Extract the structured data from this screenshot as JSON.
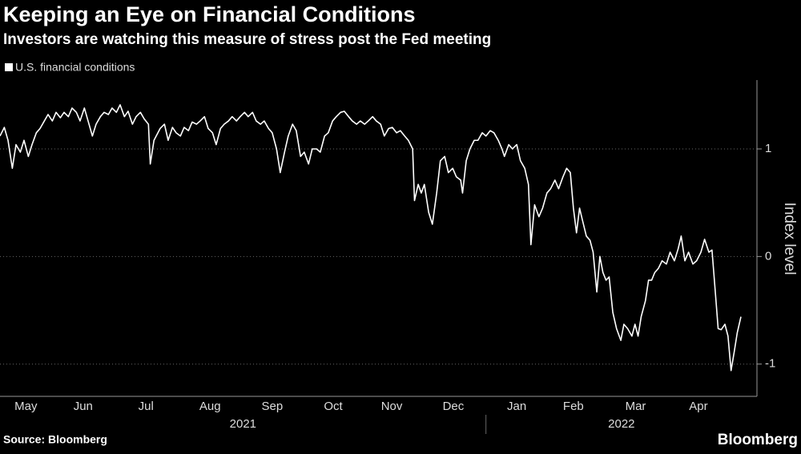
{
  "chart_data": {
    "type": "line",
    "title": "Keeping an Eye on Financial Conditions",
    "subtitle": "Investors are watching this measure of stress post the Fed meeting",
    "y_label": "Index level",
    "source": "Source: Bloomberg",
    "brand": "Bloomberg",
    "x": [
      0.08,
      0.15,
      0.21,
      0.28,
      0.34,
      0.41,
      0.47,
      0.54,
      0.6,
      0.67,
      0.73,
      0.8,
      0.86,
      0.93,
      0.99,
      1.06,
      1.12,
      1.19,
      1.25,
      1.32,
      1.38,
      1.45,
      1.51,
      1.58,
      1.64,
      1.71,
      1.77,
      1.84,
      1.9,
      1.97,
      2.03,
      2.1,
      2.16,
      2.23,
      2.29,
      2.36,
      2.42,
      2.49,
      2.52,
      2.58,
      2.68,
      2.75,
      2.81,
      2.88,
      2.94,
      3.01,
      3.07,
      3.14,
      3.2,
      3.27,
      3.33,
      3.4,
      3.46,
      3.53,
      3.59,
      3.66,
      3.72,
      3.79,
      3.85,
      3.92,
      3.98,
      4.05,
      4.11,
      4.18,
      4.24,
      4.31,
      4.37,
      4.44,
      4.5,
      4.57,
      4.63,
      4.7,
      4.76,
      4.83,
      4.89,
      4.96,
      5.02,
      5.09,
      5.15,
      5.22,
      5.28,
      5.35,
      5.41,
      5.48,
      5.54,
      5.61,
      5.67,
      5.74,
      5.8,
      5.87,
      5.93,
      6.0,
      6.06,
      6.13,
      6.19,
      6.26,
      6.32,
      6.39,
      6.45,
      6.52,
      6.58,
      6.65,
      6.71,
      6.78,
      6.81,
      6.87,
      6.92,
      6.97,
      7.04,
      7.1,
      7.17,
      7.23,
      7.3,
      7.36,
      7.43,
      7.49,
      7.56,
      7.59,
      7.65,
      7.71,
      7.78,
      7.84,
      7.91,
      7.97,
      8.04,
      8.1,
      8.17,
      8.23,
      8.27,
      8.34,
      8.4,
      8.47,
      8.53,
      8.6,
      8.66,
      8.7,
      8.76,
      8.83,
      8.89,
      8.96,
      9.02,
      9.09,
      9.15,
      9.22,
      9.28,
      9.34,
      9.39,
      9.44,
      9.49,
      9.54,
      9.6,
      9.66,
      9.71,
      9.77,
      9.82,
      9.87,
      9.92,
      9.97,
      10.03,
      10.09,
      10.16,
      10.21,
      10.27,
      10.34,
      10.39,
      10.44,
      10.49,
      10.56,
      10.61,
      10.66,
      10.71,
      10.77,
      10.83,
      10.9,
      10.96,
      11.03,
      11.09,
      11.14,
      11.2,
      11.26,
      11.33,
      11.39,
      11.46,
      11.52,
      11.59,
      11.64,
      11.69,
      11.74,
      11.79,
      11.85,
      11.9,
      11.95,
      12.0,
      12.05,
      12.11
    ],
    "series": [
      {
        "name": "U.S. financial conditions",
        "color": "#ffffff",
        "values": [
          1.12,
          1.2,
          1.08,
          0.82,
          1.04,
          0.97,
          1.08,
          0.93,
          1.04,
          1.15,
          1.19,
          1.26,
          1.32,
          1.26,
          1.34,
          1.29,
          1.34,
          1.3,
          1.38,
          1.34,
          1.26,
          1.38,
          1.26,
          1.12,
          1.23,
          1.3,
          1.34,
          1.32,
          1.38,
          1.34,
          1.41,
          1.3,
          1.35,
          1.23,
          1.3,
          1.34,
          1.28,
          1.23,
          0.86,
          1.08,
          1.19,
          1.23,
          1.08,
          1.2,
          1.15,
          1.12,
          1.2,
          1.17,
          1.25,
          1.23,
          1.26,
          1.3,
          1.19,
          1.15,
          1.04,
          1.19,
          1.23,
          1.26,
          1.3,
          1.26,
          1.3,
          1.34,
          1.3,
          1.34,
          1.26,
          1.23,
          1.26,
          1.19,
          1.15,
          1.0,
          0.78,
          0.97,
          1.12,
          1.23,
          1.17,
          0.93,
          0.97,
          0.86,
          1.0,
          1.0,
          0.97,
          1.12,
          1.15,
          1.26,
          1.3,
          1.34,
          1.35,
          1.3,
          1.26,
          1.23,
          1.26,
          1.23,
          1.26,
          1.3,
          1.26,
          1.23,
          1.12,
          1.19,
          1.2,
          1.15,
          1.17,
          1.12,
          1.08,
          1.0,
          0.52,
          0.67,
          0.59,
          0.67,
          0.41,
          0.3,
          0.59,
          0.89,
          0.93,
          0.78,
          0.82,
          0.74,
          0.71,
          0.59,
          0.89,
          1.0,
          1.08,
          1.08,
          1.15,
          1.12,
          1.17,
          1.15,
          1.08,
          1.0,
          0.93,
          1.04,
          1.0,
          1.04,
          0.89,
          0.82,
          0.67,
          0.11,
          0.48,
          0.37,
          0.45,
          0.59,
          0.63,
          0.71,
          0.63,
          0.74,
          0.82,
          0.78,
          0.45,
          0.22,
          0.45,
          0.33,
          0.19,
          0.15,
          0.04,
          -0.33,
          0,
          -0.15,
          -0.22,
          -0.19,
          -0.52,
          -0.67,
          -0.78,
          -0.63,
          -0.67,
          -0.74,
          -0.63,
          -0.74,
          -0.56,
          -0.41,
          -0.22,
          -0.22,
          -0.15,
          -0.11,
          -0.04,
          -0.07,
          0.04,
          -0.04,
          0.07,
          0.19,
          -0.04,
          0.04,
          -0.07,
          -0.04,
          0.04,
          0.16,
          0.04,
          0.06,
          -0.3,
          -0.67,
          -0.68,
          -0.63,
          -0.74,
          -1.06,
          -0.89,
          -0.71,
          -0.56
        ]
      }
    ],
    "xlim": [
      0.08,
      12.37
    ],
    "xticks": [
      {
        "value": 0.5,
        "label": "May"
      },
      {
        "value": 1.43,
        "label": "Jun"
      },
      {
        "value": 2.45,
        "label": "Jul"
      },
      {
        "value": 3.49,
        "label": "Aug"
      },
      {
        "value": 4.5,
        "label": "Sep"
      },
      {
        "value": 5.49,
        "label": "Oct"
      },
      {
        "value": 6.44,
        "label": "Nov"
      },
      {
        "value": 7.44,
        "label": "Dec"
      },
      {
        "value": 8.47,
        "label": "Jan"
      },
      {
        "value": 9.39,
        "label": "Feb"
      },
      {
        "value": 10.4,
        "label": "Mar"
      },
      {
        "value": 11.42,
        "label": "Apr"
      }
    ],
    "year_groups": [
      {
        "label": "2021",
        "start": 0.08,
        "end": 7.97
      },
      {
        "label": "2022",
        "start": 7.97,
        "end": 12.37
      }
    ],
    "ylim": [
      -1.3,
      1.64
    ],
    "yticks": [
      -1,
      0,
      1
    ],
    "grid": true
  }
}
